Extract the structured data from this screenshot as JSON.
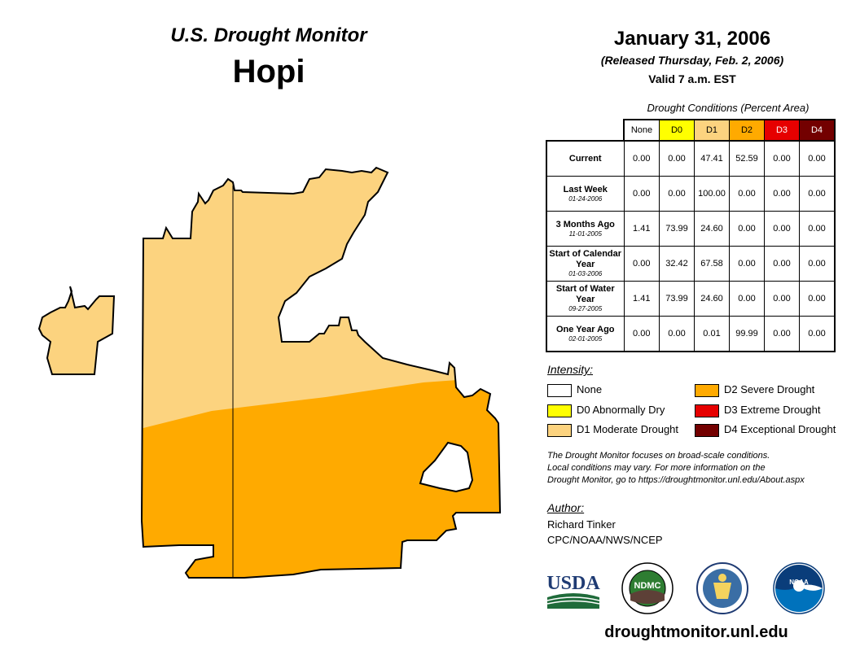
{
  "header": {
    "map_title": "U.S. Drought Monitor",
    "region": "Hopi",
    "date": "January 31, 2006",
    "released": "(Released Thursday, Feb. 2, 2006)",
    "valid": "Valid 7 a.m. EST"
  },
  "table": {
    "caption": "Drought Conditions (Percent Area)",
    "columns": [
      "None",
      "D0",
      "D1",
      "D2",
      "D3",
      "D4"
    ],
    "rows": [
      {
        "label": "Current",
        "date": "",
        "values": [
          "0.00",
          "0.00",
          "47.41",
          "52.59",
          "0.00",
          "0.00"
        ]
      },
      {
        "label": "Last Week",
        "date": "01-24-2006",
        "values": [
          "0.00",
          "0.00",
          "100.00",
          "0.00",
          "0.00",
          "0.00"
        ]
      },
      {
        "label": "3 Months Ago",
        "date": "11-01-2005",
        "values": [
          "1.41",
          "73.99",
          "24.60",
          "0.00",
          "0.00",
          "0.00"
        ]
      },
      {
        "label": "Start of Calendar Year",
        "date": "01-03-2006",
        "values": [
          "0.00",
          "32.42",
          "67.58",
          "0.00",
          "0.00",
          "0.00"
        ]
      },
      {
        "label": "Start of Water Year",
        "date": "09-27-2005",
        "values": [
          "1.41",
          "73.99",
          "24.60",
          "0.00",
          "0.00",
          "0.00"
        ]
      },
      {
        "label": "One Year Ago",
        "date": "02-01-2005",
        "values": [
          "0.00",
          "0.00",
          "0.01",
          "99.99",
          "0.00",
          "0.00"
        ]
      }
    ]
  },
  "legend": {
    "title": "Intensity:",
    "items": [
      {
        "label": "None",
        "color": "#ffffff"
      },
      {
        "label": "D0 Abnormally Dry",
        "color": "#ffff00"
      },
      {
        "label": "D1 Moderate Drought",
        "color": "#fcd37f"
      },
      {
        "label": "D2 Severe Drought",
        "color": "#ffaa00"
      },
      {
        "label": "D3 Extreme Drought",
        "color": "#e60000"
      },
      {
        "label": "D4 Exceptional Drought",
        "color": "#730000"
      }
    ]
  },
  "disclaimer": {
    "line1": "The Drought Monitor focuses on broad-scale conditions.",
    "line2": "Local conditions may vary. For more information on the",
    "line3": "Drought Monitor, go to https://droughtmonitor.unl.edu/About.aspx"
  },
  "author": {
    "title": "Author:",
    "name": "Richard Tinker",
    "org": "CPC/NOAA/NWS/NCEP"
  },
  "logos": {
    "usda": "USDA",
    "ndmc": "NDMC",
    "noaa": "NOAA"
  },
  "footer": {
    "website": "droughtmonitor.unl.edu"
  },
  "colors": {
    "d1": "#fcd37f",
    "d2": "#ffaa00",
    "none": "#ffffff"
  }
}
